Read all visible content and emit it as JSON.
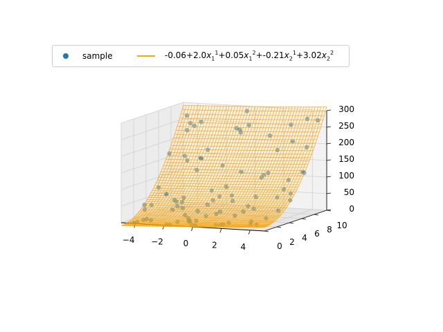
{
  "chart_data": {
    "type": "scatter",
    "title": "",
    "series": [
      {
        "name": "sample",
        "kind": "scatter",
        "color": "#1f77b4"
      },
      {
        "name": "-0.06+2.0x1^1+0.05x1^2+-0.21x2^1+3.02x2^2",
        "kind": "surface",
        "color": "#ffa500",
        "coefficients": {
          "intercept": -0.06,
          "x1": 2.0,
          "x1_sq": 0.05,
          "x2": -0.21,
          "x2_sq": 3.02
        }
      }
    ],
    "x1_ticks": [
      "−4",
      "−2",
      "0",
      "2",
      "4"
    ],
    "x2_ticks": [
      "0",
      "2",
      "4",
      "6",
      "8",
      "10"
    ],
    "z_ticks": [
      "0",
      "50",
      "100",
      "150",
      "200",
      "250",
      "300"
    ],
    "x1lim": [
      -5,
      5
    ],
    "x2lim": [
      0,
      10
    ],
    "zlim": [
      0,
      300
    ],
    "grid": true,
    "legend_position": "top"
  },
  "legend": {
    "sample_label": "sample",
    "fit_const": "-0.06+2.0",
    "fit_t1": "+0.05",
    "fit_t2": "+-0.21",
    "fit_t3": "+3.02",
    "var": "x",
    "sub1": "1",
    "sub2": "2",
    "sup1": "1",
    "sup2": "2"
  }
}
